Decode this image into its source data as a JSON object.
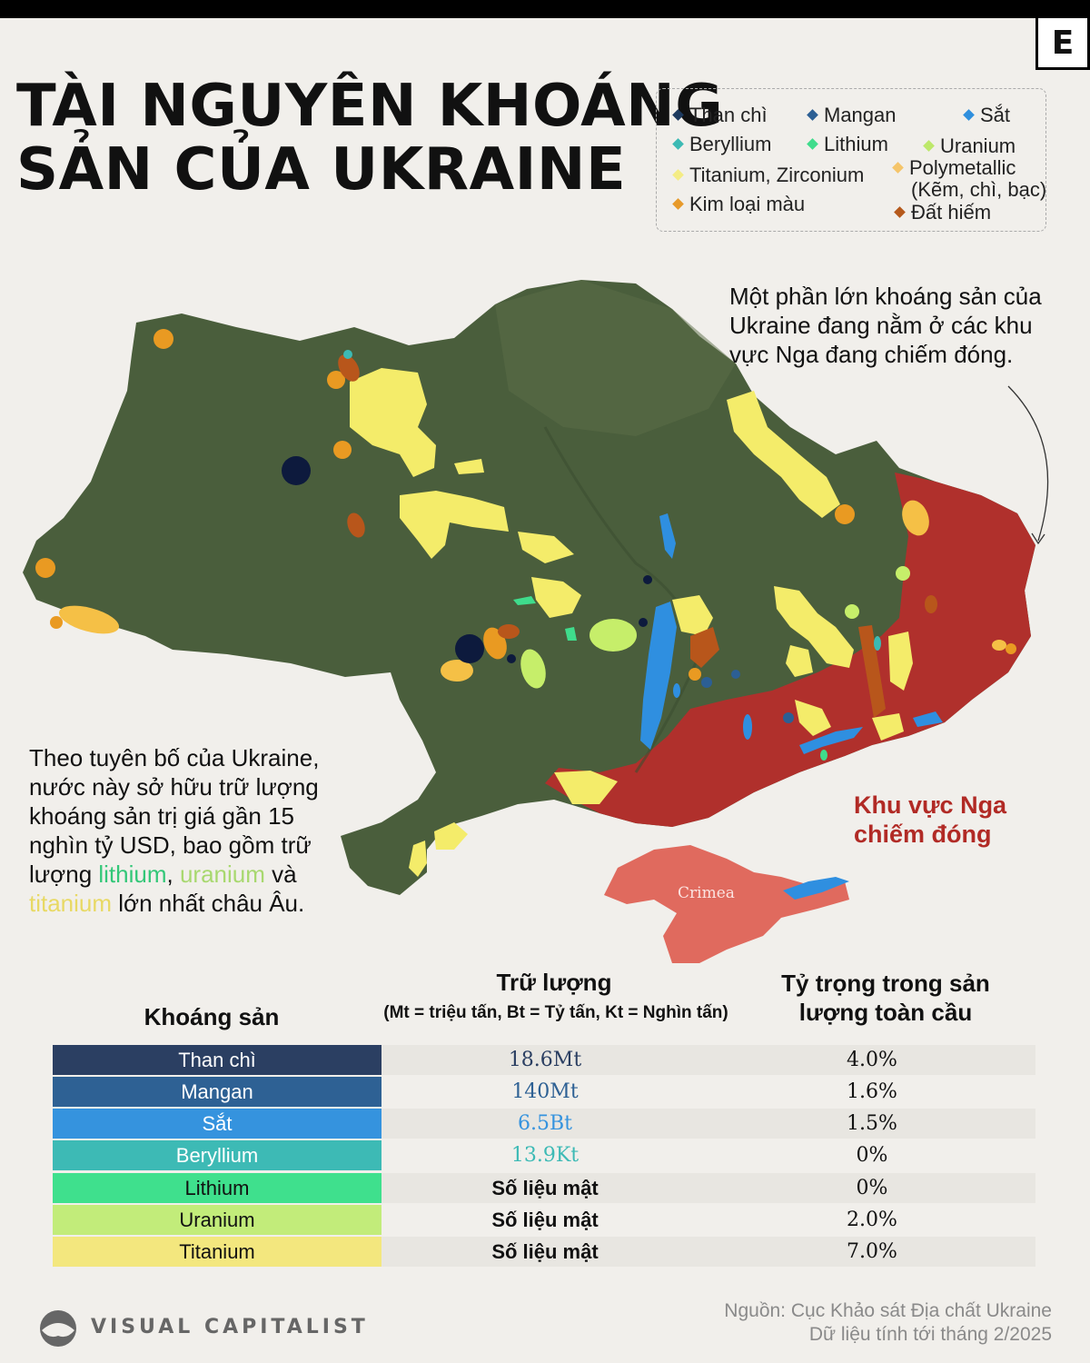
{
  "title": {
    "line1": "TÀI NGUYÊN KHOÁNG",
    "line2": "SẢN CỦA UKRAINE"
  },
  "brand_mark": "E",
  "legend": [
    {
      "label": "Than chì",
      "color": "#1d3a5f"
    },
    {
      "label": "Mangan",
      "color": "#2c5f94"
    },
    {
      "label": "Sắt",
      "color": "#2f8fdd"
    },
    {
      "label": "Beryllium",
      "color": "#3cbab4"
    },
    {
      "label": "Lithium",
      "color": "#3fdc8c"
    },
    {
      "label": "Uranium",
      "color": "#bde86a"
    },
    {
      "label": "Titanium, Zirconium",
      "color": "#f4ec84"
    },
    {
      "label": "Polymetallic",
      "label2": "(Kẽm, chì, bạc)",
      "color": "#f5c56a"
    },
    {
      "label": "Kim loại màu",
      "color": "#e79a2a"
    },
    {
      "label": "Đất hiếm",
      "color": "#b5591b"
    }
  ],
  "annotations": {
    "occupied_note": "Một phần lớn khoáng sản của Ukraine đang nằm ở các khu vực Nga đang chiếm đóng.",
    "claim_parts": [
      "Theo tuyên bố của Ukraine, nước này sở hữu trữ lượng khoáng sản trị giá gần 15 nghìn tỷ USD, bao gồm trữ lượng ",
      "lithium",
      ", ",
      "uranium",
      " và ",
      "titanium",
      " lớn nhất châu Âu."
    ],
    "occupied_label_1": "Khu vực Nga",
    "occupied_label_2": "chiếm đóng",
    "crimea_label": "Crimea"
  },
  "table": {
    "col_mineral": "Khoáng sản",
    "col_reserves": "Trữ lượng",
    "col_reserves_sub": "(Mt = triệu tấn, Bt = Tỷ tấn, Kt = Nghìn tấn)",
    "col_share_1": "Tỷ trọng trong sản",
    "col_share_2": "lượng toàn cầu",
    "rows": [
      {
        "mineral": "Than chì",
        "reserves": "18.6Mt",
        "share": "4.0%",
        "color": "#2b3f62",
        "text_color": "#ffffff",
        "res_color": "#2b3f62"
      },
      {
        "mineral": "Mangan",
        "reserves": "140Mt",
        "share": "1.6%",
        "color": "#2e6194",
        "text_color": "#ffffff",
        "res_color": "#2e6194"
      },
      {
        "mineral": "Sắt",
        "reserves": "6.5Bt",
        "share": "1.5%",
        "color": "#3593de",
        "text_color": "#ffffff",
        "res_color": "#3593de"
      },
      {
        "mineral": "Beryllium",
        "reserves": "13.9Kt",
        "share": "0%",
        "color": "#3dbab5",
        "text_color": "#ffffff",
        "res_color": "#3dbab5"
      },
      {
        "mineral": "Lithium",
        "reserves": "Số liệu mật",
        "share": "0%",
        "color": "#3fe08d",
        "text_color": "#111111",
        "res_color": "#111111"
      },
      {
        "mineral": "Uranium",
        "reserves": "Số liệu mật",
        "share": "2.0%",
        "color": "#c2ec7a",
        "text_color": "#111111",
        "res_color": "#111111"
      },
      {
        "mineral": "Titanium",
        "reserves": "Số liệu mật",
        "share": "7.0%",
        "color": "#f3e77e",
        "text_color": "#111111",
        "res_color": "#111111"
      }
    ]
  },
  "footer": {
    "brand": "VISUAL CAPITALIST",
    "source_1": "Nguồn: Cục Khảo sát Địa chất Ukraine",
    "source_2": "Dữ liệu tính tới tháng 2/2025"
  }
}
